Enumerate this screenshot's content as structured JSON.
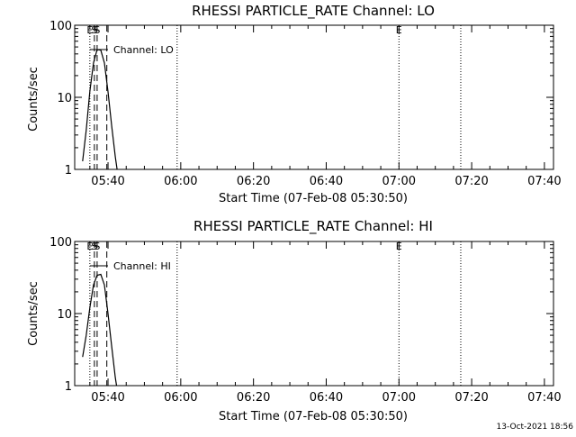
{
  "footer": {
    "date": "13-Oct-2021 18:56"
  },
  "chart_data": [
    {
      "type": "line",
      "title": "RHESSI PARTICLE_RATE Channel: LO",
      "xlabel": "Start Time (07-Feb-08 05:30:50)",
      "ylabel": "Counts/sec",
      "y_scale": "log",
      "ylim": [
        1,
        100
      ],
      "y_ticks": [
        {
          "value": 1,
          "label": "1"
        },
        {
          "value": 10,
          "label": "10"
        },
        {
          "value": 100,
          "label": "100"
        }
      ],
      "xlim": [
        "05:30:50",
        "07:42:30"
      ],
      "x_ticks": [
        "05:40",
        "06:00",
        "06:20",
        "06:40",
        "07:00",
        "07:20",
        "07:40"
      ],
      "grid": false,
      "series": [
        {
          "name": "Channel: LO",
          "x": [
            "05:33:00",
            "05:34:00",
            "05:35:00",
            "05:36:00",
            "05:37:00",
            "05:38:00",
            "05:39:00",
            "05:40:00",
            "05:41:00",
            "05:42:00",
            "05:42:30"
          ],
          "y": [
            1.3,
            3.5,
            12,
            30,
            46,
            45,
            30,
            12,
            4,
            1.5,
            1.0
          ]
        }
      ],
      "event_lines": [
        {
          "time": "05:35:00",
          "label": "E",
          "style": "dotted"
        },
        {
          "time": "05:36:15",
          "label": "S",
          "style": "dashed"
        },
        {
          "time": "05:37:00",
          "label": "S",
          "style": "dashed"
        },
        {
          "time": "05:39:40",
          "label": "",
          "style": "dashed"
        },
        {
          "time": "05:59:00",
          "label": "",
          "style": "dotted"
        },
        {
          "time": "07:00:00",
          "label": "E",
          "style": "dotted"
        },
        {
          "time": "07:17:00",
          "label": "",
          "style": "dotted"
        }
      ],
      "legend": "Channel: LO"
    },
    {
      "type": "line",
      "title": "RHESSI PARTICLE_RATE Channel: HI",
      "xlabel": "Start Time (07-Feb-08 05:30:50)",
      "ylabel": "Counts/sec",
      "y_scale": "log",
      "ylim": [
        1,
        100
      ],
      "y_ticks": [
        {
          "value": 1,
          "label": "1"
        },
        {
          "value": 10,
          "label": "10"
        },
        {
          "value": 100,
          "label": "100"
        }
      ],
      "xlim": [
        "05:30:50",
        "07:42:30"
      ],
      "x_ticks": [
        "05:40",
        "06:00",
        "06:20",
        "06:40",
        "07:00",
        "07:20",
        "07:40"
      ],
      "grid": false,
      "series": [
        {
          "name": "Channel: HI",
          "x": [
            "05:33:00",
            "05:34:00",
            "05:35:00",
            "05:36:00",
            "05:37:00",
            "05:38:00",
            "05:39:00",
            "05:40:00",
            "05:41:00",
            "05:42:00",
            "05:42:20"
          ],
          "y": [
            2.5,
            5,
            12,
            25,
            34,
            35,
            25,
            10,
            3.5,
            1.3,
            1.0
          ]
        }
      ],
      "event_lines": [
        {
          "time": "05:35:00",
          "label": "E",
          "style": "dotted"
        },
        {
          "time": "05:36:15",
          "label": "S",
          "style": "dashed"
        },
        {
          "time": "05:37:00",
          "label": "S",
          "style": "dashed"
        },
        {
          "time": "05:39:40",
          "label": "",
          "style": "dashed"
        },
        {
          "time": "05:59:00",
          "label": "",
          "style": "dotted"
        },
        {
          "time": "07:00:00",
          "label": "E",
          "style": "dotted"
        },
        {
          "time": "07:17:00",
          "label": "",
          "style": "dotted"
        }
      ],
      "legend": "Channel: HI"
    }
  ]
}
